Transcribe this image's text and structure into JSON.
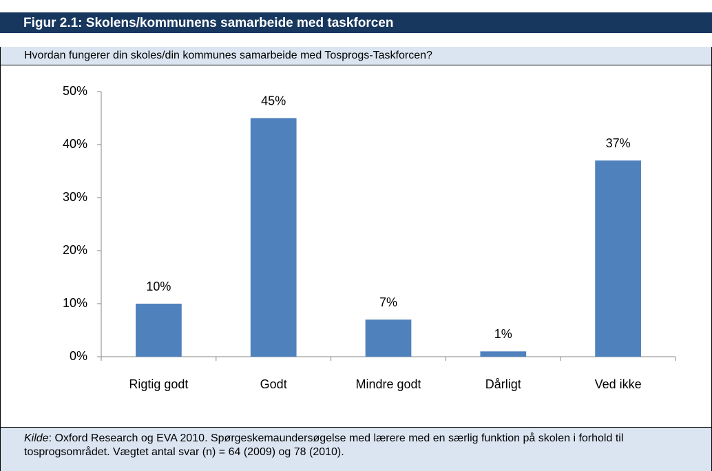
{
  "header": {
    "title": "Figur 2.1: Skolens/kommunens samarbeide med taskforcen",
    "question": "Hvordan fungerer din skoles/din kommunes samarbeide med Tosprogs-Taskforcen?"
  },
  "chart_data": {
    "type": "bar",
    "categories": [
      "Rigtig godt",
      "Godt",
      "Mindre godt",
      "Dårligt",
      "Ved ikke"
    ],
    "values": [
      10,
      45,
      7,
      1,
      37
    ],
    "value_labels": [
      "10%",
      "45%",
      "7%",
      "1%",
      "37%"
    ],
    "color": "#4f81bd",
    "ylim": [
      0,
      50
    ],
    "yticks": [
      {
        "value": 0,
        "label": "0%"
      },
      {
        "value": 10,
        "label": "10%"
      },
      {
        "value": 20,
        "label": "20%"
      },
      {
        "value": 30,
        "label": "30%"
      },
      {
        "value": 40,
        "label": "40%"
      },
      {
        "value": 50,
        "label": "50%"
      }
    ],
    "grid": false
  },
  "footer": {
    "source_label": "Kilde",
    "text": ": Oxford Research og EVA 2010. Spørgeskemaundersøgelse med lærere med en særlig funktion på skolen i forhold til tosprogsområdet. Vægtet antal svar (n) = 64 (2009) og 78 (2010)."
  }
}
